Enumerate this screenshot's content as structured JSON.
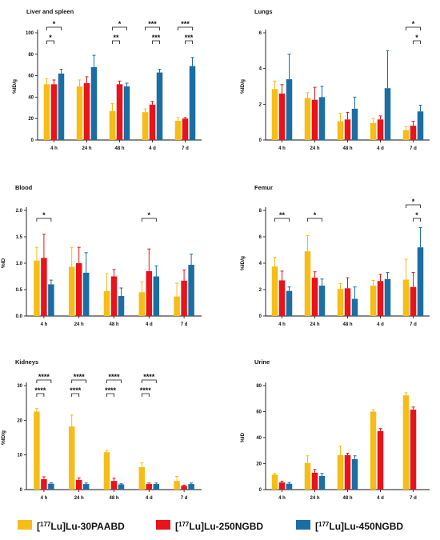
{
  "series_names": [
    "[177Lu]Lu-30PAABD",
    "[177Lu]Lu-250NGBD",
    "[177Lu]Lu-450NGBD"
  ],
  "colors": [
    "#f6bd16",
    "#e8141b",
    "#1b6ea3"
  ],
  "legend": {
    "items": [
      {
        "prefix": "[",
        "sup": "177",
        "suffix": "Lu]Lu-30PAABD"
      },
      {
        "prefix": "[",
        "sup": "177",
        "suffix": "Lu]Lu-250NGBD"
      },
      {
        "prefix": "[",
        "sup": "177",
        "suffix": "Lu]Lu-450NGBD"
      }
    ]
  },
  "chart_data": [
    {
      "type": "bar",
      "title": "Liver and spleen",
      "ylabel": "%ID/g",
      "ylim": [
        0,
        100
      ],
      "yticks": [
        "0",
        "20",
        "40",
        "60",
        "80",
        "100"
      ],
      "categories": [
        "4 h",
        "24 h",
        "48 h",
        "4 d",
        "7 d"
      ],
      "series": [
        {
          "values": [
            52,
            50,
            27,
            26,
            18
          ],
          "errors": [
            5,
            6,
            7,
            3,
            3
          ]
        },
        {
          "values": [
            52,
            53,
            52,
            33,
            20
          ],
          "errors": [
            4,
            6,
            3,
            3,
            1
          ]
        },
        {
          "values": [
            62,
            68,
            50,
            63,
            69
          ],
          "errors": [
            4,
            11,
            3,
            3,
            8
          ]
        }
      ],
      "brackets": [
        {
          "cat": 0,
          "from": 0,
          "to": 2,
          "level": 2,
          "label": "*"
        },
        {
          "cat": 0,
          "from": 0,
          "to": 1,
          "level": 1,
          "label": "*"
        },
        {
          "cat": 2,
          "from": 0,
          "to": 2,
          "level": 2,
          "label": "*"
        },
        {
          "cat": 2,
          "from": 0,
          "to": 1,
          "level": 1,
          "label": "**"
        },
        {
          "cat": 3,
          "from": 0,
          "to": 2,
          "level": 2,
          "label": "***"
        },
        {
          "cat": 3,
          "from": 1,
          "to": 2,
          "level": 1,
          "label": "***"
        },
        {
          "cat": 4,
          "from": 0,
          "to": 2,
          "level": 2,
          "label": "***"
        },
        {
          "cat": 4,
          "from": 1,
          "to": 2,
          "level": 1,
          "label": "***"
        }
      ]
    },
    {
      "type": "bar",
      "title": "Lungs",
      "ylabel": "%ID/g",
      "ylim": [
        0,
        6
      ],
      "yticks": [
        "0",
        "2",
        "4",
        "6"
      ],
      "categories": [
        "4 h",
        "24 h",
        "48 h",
        "4 d",
        "7 d"
      ],
      "series": [
        {
          "values": [
            2.85,
            2.35,
            1.05,
            0.95,
            0.55
          ],
          "errors": [
            0.45,
            0.3,
            0.45,
            0.25,
            0.2
          ]
        },
        {
          "values": [
            2.6,
            2.25,
            1.15,
            1.15,
            0.8
          ],
          "errors": [
            0.5,
            0.7,
            0.4,
            0.2,
            0.25
          ]
        },
        {
          "values": [
            3.4,
            2.4,
            1.75,
            2.9,
            1.6
          ],
          "errors": [
            1.4,
            0.6,
            0.65,
            2.1,
            0.35
          ]
        }
      ],
      "brackets": [
        {
          "cat": 4,
          "from": 0,
          "to": 2,
          "level": 2,
          "label": "*"
        },
        {
          "cat": 4,
          "from": 1,
          "to": 2,
          "level": 1,
          "label": "*"
        }
      ]
    },
    {
      "type": "bar",
      "title": "Blood",
      "ylabel": "%ID",
      "ylim": [
        0,
        2
      ],
      "yticks": [
        "0.0",
        "0.5",
        "1.0",
        "1.5",
        "2.0"
      ],
      "categories": [
        "4 h",
        "24 h",
        "48 h",
        "4 d",
        "7 d"
      ],
      "series": [
        {
          "values": [
            1.05,
            0.93,
            0.47,
            0.45,
            0.37
          ],
          "errors": [
            0.25,
            0.37,
            0.33,
            0.2,
            0.25
          ]
        },
        {
          "values": [
            1.1,
            1.0,
            0.75,
            0.85,
            0.67
          ],
          "errors": [
            0.45,
            0.3,
            0.13,
            0.42,
            0.2
          ]
        },
        {
          "values": [
            0.6,
            0.82,
            0.38,
            0.75,
            0.97
          ],
          "errors": [
            0.08,
            0.38,
            0.15,
            0.2,
            0.2
          ]
        }
      ],
      "brackets": [
        {
          "cat": 0,
          "from": 0,
          "to": 2,
          "level": 1,
          "label": "*"
        },
        {
          "cat": 3,
          "from": 0,
          "to": 2,
          "level": 1,
          "label": "*"
        }
      ]
    },
    {
      "type": "bar",
      "title": "Femur",
      "ylabel": "%ID/g",
      "ylim": [
        0,
        8
      ],
      "yticks": [
        "0",
        "2",
        "4",
        "6",
        "8"
      ],
      "categories": [
        "4 h",
        "24 h",
        "48 h",
        "4 d",
        "7 d"
      ],
      "series": [
        {
          "values": [
            3.75,
            4.9,
            2.05,
            2.3,
            2.75
          ],
          "errors": [
            0.7,
            1.2,
            0.4,
            0.4,
            1.55
          ]
        },
        {
          "values": [
            2.7,
            2.9,
            2.1,
            2.65,
            2.2
          ],
          "errors": [
            0.7,
            0.45,
            0.8,
            0.5,
            1.1
          ]
        },
        {
          "values": [
            1.9,
            2.3,
            1.3,
            2.8,
            5.2
          ],
          "errors": [
            0.3,
            0.5,
            0.9,
            0.5,
            1.5
          ]
        }
      ],
      "brackets": [
        {
          "cat": 0,
          "from": 0,
          "to": 2,
          "level": 1,
          "label": "**"
        },
        {
          "cat": 1,
          "from": 0,
          "to": 2,
          "level": 1,
          "label": "*"
        },
        {
          "cat": 4,
          "from": 0,
          "to": 2,
          "level": 2,
          "label": "*"
        },
        {
          "cat": 4,
          "from": 1,
          "to": 2,
          "level": 1,
          "label": "*"
        }
      ]
    },
    {
      "type": "bar",
      "title": "Kidneys",
      "ylabel": "%ID/g",
      "ylim": [
        0,
        30
      ],
      "yticks": [
        "0",
        "10",
        "20",
        "30"
      ],
      "categories": [
        "4 h",
        "24 h",
        "48 h",
        "4 d",
        "7 d"
      ],
      "series": [
        {
          "values": [
            22.5,
            18.2,
            10.8,
            6.5,
            2.5
          ],
          "errors": [
            0.9,
            3.3,
            0.5,
            1.2,
            1.3
          ]
        },
        {
          "values": [
            3.0,
            2.8,
            2.5,
            1.6,
            1.1
          ],
          "errors": [
            0.7,
            0.6,
            0.8,
            0.3,
            0.2
          ]
        },
        {
          "values": [
            1.7,
            1.6,
            1.5,
            1.6,
            1.6
          ],
          "errors": [
            0.3,
            0.3,
            0.2,
            0.3,
            0.3
          ]
        }
      ],
      "brackets": [
        {
          "cat": 0,
          "from": 0,
          "to": 2,
          "level": 2,
          "label": "****"
        },
        {
          "cat": 0,
          "from": 0,
          "to": 1,
          "level": 1,
          "label": "****"
        },
        {
          "cat": 1,
          "from": 0,
          "to": 2,
          "level": 2,
          "label": "****"
        },
        {
          "cat": 1,
          "from": 0,
          "to": 1,
          "level": 1,
          "label": "****"
        },
        {
          "cat": 2,
          "from": 0,
          "to": 2,
          "level": 2,
          "label": "****"
        },
        {
          "cat": 2,
          "from": 0,
          "to": 1,
          "level": 1,
          "label": "****"
        },
        {
          "cat": 3,
          "from": 0,
          "to": 2,
          "level": 2,
          "label": "****"
        },
        {
          "cat": 3,
          "from": 0,
          "to": 1,
          "level": 1,
          "label": "****"
        }
      ]
    },
    {
      "type": "bar",
      "title": "Urine",
      "ylabel": "%ID",
      "ylim": [
        0,
        80
      ],
      "yticks": [
        "0",
        "20",
        "40",
        "60",
        "80"
      ],
      "categories": [
        "4 h",
        "24 h",
        "48 h",
        "4 d",
        "7 d"
      ],
      "series": [
        {
          "values": [
            11.5,
            20.5,
            26.5,
            60,
            72.5
          ],
          "errors": [
            1,
            5.5,
            7,
            1.5,
            2
          ]
        },
        {
          "values": [
            5.5,
            13,
            26.5,
            45,
            61.5
          ],
          "errors": [
            1,
            2.5,
            1.5,
            2,
            2
          ]
        },
        {
          "values": [
            4.5,
            10.5,
            23.5,
            null,
            null
          ],
          "errors": [
            1,
            2,
            2.5,
            null,
            null
          ]
        }
      ],
      "brackets": []
    }
  ]
}
